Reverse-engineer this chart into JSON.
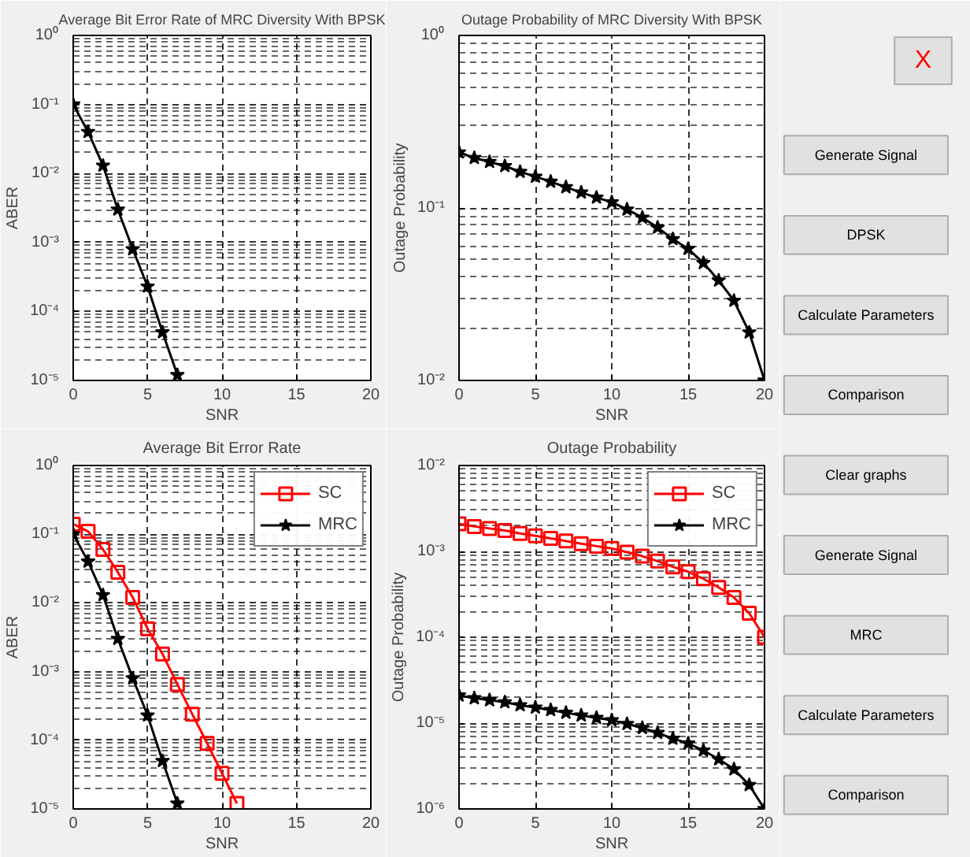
{
  "chart_data": [
    {
      "type": "line",
      "title": "Average Bit Error Rate of MRC Diversity With BPSK",
      "xlabel": "SNR",
      "ylabel": "ABER",
      "log": "y",
      "grid": true,
      "xlim": [
        0,
        20
      ],
      "xticks": [
        0,
        5,
        10,
        15,
        20
      ],
      "ylim": [
        1e-05,
        1
      ],
      "yticks": [
        {
          "value": 1e-05,
          "label": "10⁻⁵"
        },
        {
          "value": 0.0001,
          "label": "10⁻⁴"
        },
        {
          "value": 0.001,
          "label": "10⁻³"
        },
        {
          "value": 0.01,
          "label": "10⁻²"
        },
        {
          "value": 0.1,
          "label": "10⁻¹"
        },
        {
          "value": 1,
          "label": "10⁰"
        }
      ],
      "marker": "star",
      "line_style": "solid",
      "legend": false,
      "series": [
        {
          "color": "#000000",
          "x": [
            0,
            1,
            2,
            3,
            4,
            5,
            6,
            7
          ],
          "values": [
            0.1,
            0.04,
            0.013,
            0.003,
            0.0008,
            0.00023,
            5e-05,
            1.2e-05
          ]
        }
      ]
    },
    {
      "type": "line",
      "title": "Outage Probability of MRC Diversity With BPSK",
      "xlabel": "SNR",
      "ylabel": "Outage Probability",
      "log": "y",
      "grid": true,
      "xlim": [
        0,
        20
      ],
      "xticks": [
        0,
        5,
        10,
        15,
        20
      ],
      "ylim": [
        0.01,
        1
      ],
      "yticks": [
        {
          "value": 0.01,
          "label": "10⁻²"
        },
        {
          "value": 0.1,
          "label": "10⁻¹"
        },
        {
          "value": 1,
          "label": "10⁰"
        }
      ],
      "marker": "star",
      "line_style": "solid",
      "legend": false,
      "series": [
        {
          "color": "#000000",
          "x": [
            0,
            1,
            2,
            3,
            4,
            5,
            6,
            7,
            8,
            9,
            10,
            11,
            12,
            13,
            14,
            15,
            16,
            17,
            18,
            19,
            20
          ],
          "values": [
            0.21,
            0.195,
            0.185,
            0.175,
            0.162,
            0.152,
            0.142,
            0.132,
            0.123,
            0.115,
            0.108,
            0.098,
            0.088,
            0.077,
            0.066,
            0.058,
            0.048,
            0.038,
            0.029,
            0.019,
            0.01
          ]
        }
      ]
    },
    {
      "type": "line",
      "title": "Average Bit Error Rate",
      "xlabel": "SNR",
      "ylabel": "ABER",
      "log": "y",
      "grid": true,
      "xlim": [
        0,
        20
      ],
      "xticks": [
        0,
        5,
        10,
        15,
        20
      ],
      "ylim": [
        1e-05,
        1
      ],
      "yticks": [
        {
          "value": 1e-05,
          "label": "10⁻⁵"
        },
        {
          "value": 0.0001,
          "label": "10⁻⁴"
        },
        {
          "value": 0.001,
          "label": "10⁻³"
        },
        {
          "value": 0.01,
          "label": "10⁻²"
        },
        {
          "value": 0.1,
          "label": "10⁻¹"
        },
        {
          "value": 1,
          "label": "10⁰"
        }
      ],
      "line_style": "solid",
      "legend": "top right",
      "series": [
        {
          "name": "SC",
          "color": "#ff0000",
          "marker": "square",
          "x": [
            0,
            1,
            2,
            3,
            4,
            5,
            6,
            7,
            8,
            9,
            10,
            11
          ],
          "values": [
            0.14,
            0.11,
            0.06,
            0.028,
            0.012,
            0.0042,
            0.0018,
            0.00065,
            0.00024,
            9e-05,
            3.3e-05,
            1.2e-05
          ]
        },
        {
          "name": "MRC",
          "color": "#000000",
          "marker": "star",
          "x": [
            0,
            1,
            2,
            3,
            4,
            5,
            6,
            7
          ],
          "values": [
            0.1,
            0.04,
            0.013,
            0.003,
            0.0008,
            0.00023,
            5e-05,
            1.2e-05
          ]
        }
      ]
    },
    {
      "type": "line",
      "title": "Outage Probability",
      "xlabel": "SNR",
      "ylabel": "Outage Probability",
      "log": "y",
      "grid": true,
      "xlim": [
        0,
        20
      ],
      "xticks": [
        0,
        5,
        10,
        15,
        20
      ],
      "ylim": [
        1e-06,
        0.01
      ],
      "yticks": [
        {
          "value": 1e-06,
          "label": "10⁻⁶"
        },
        {
          "value": 1e-05,
          "label": "10⁻⁵"
        },
        {
          "value": 0.0001,
          "label": "10⁻⁴"
        },
        {
          "value": 0.001,
          "label": "10⁻³"
        },
        {
          "value": 0.01,
          "label": "10⁻²"
        }
      ],
      "line_style": "solid",
      "legend": "top right",
      "series": [
        {
          "name": "SC",
          "color": "#ff0000",
          "marker": "square",
          "x": [
            0,
            1,
            2,
            3,
            4,
            5,
            6,
            7,
            8,
            9,
            10,
            11,
            12,
            13,
            14,
            15,
            16,
            17,
            18,
            19,
            20
          ],
          "values": [
            0.0021,
            0.00195,
            0.00185,
            0.00175,
            0.00162,
            0.00152,
            0.00142,
            0.00132,
            0.00123,
            0.00115,
            0.00108,
            0.00098,
            0.00088,
            0.00077,
            0.00066,
            0.00058,
            0.00048,
            0.00038,
            0.00029,
            0.00019,
            0.0001
          ]
        },
        {
          "name": "MRC",
          "color": "#000000",
          "marker": "star",
          "x": [
            0,
            1,
            2,
            3,
            4,
            5,
            6,
            7,
            8,
            9,
            10,
            11,
            12,
            13,
            14,
            15,
            16,
            17,
            18,
            19,
            20
          ],
          "values": [
            2.1e-05,
            1.95e-05,
            1.85e-05,
            1.75e-05,
            1.62e-05,
            1.52e-05,
            1.42e-05,
            1.32e-05,
            1.23e-05,
            1.15e-05,
            1.08e-05,
            9.8e-06,
            8.8e-06,
            7.7e-06,
            6.6e-06,
            5.8e-06,
            4.8e-06,
            3.8e-06,
            2.9e-06,
            1.9e-06,
            1e-06
          ]
        }
      ]
    },
    {
      "type": "other",
      "annotations": [
        "X",
        "Generate Signal",
        "DPSK",
        "Calculate Parameters",
        "Comparison",
        "Clear graphs",
        "Generate Signal",
        "MRC",
        "Calculate Parameters",
        "Comparison"
      ]
    }
  ]
}
